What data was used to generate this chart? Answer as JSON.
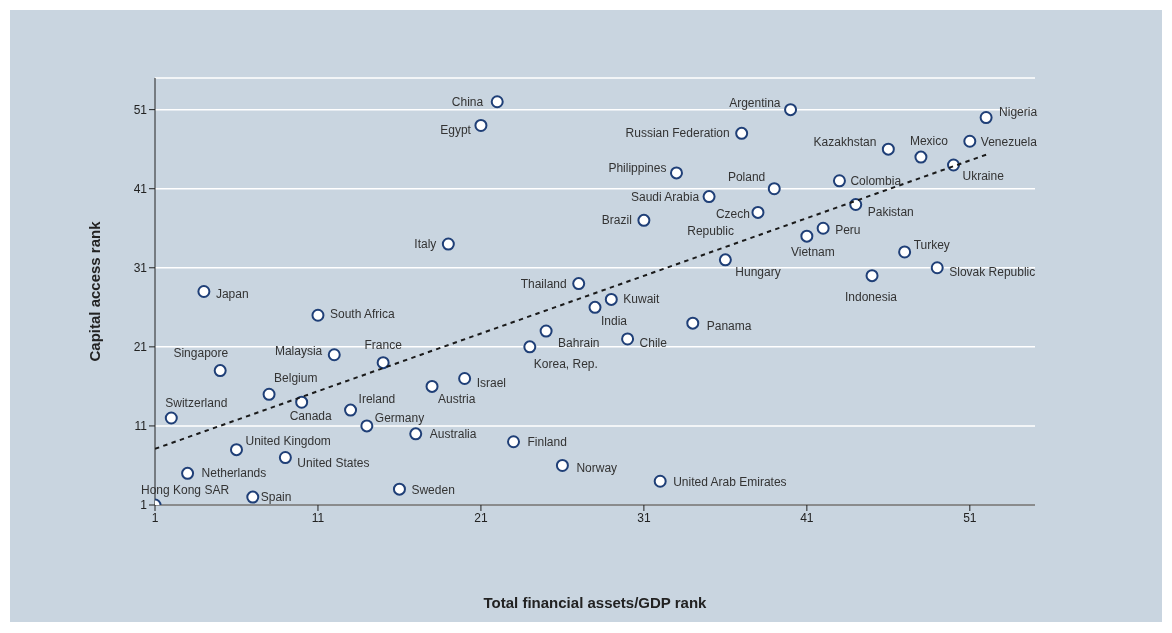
{
  "chart_data": {
    "type": "scatter",
    "xlabel": "Total financial assets/GDP rank",
    "ylabel": "Capital access rank",
    "xlim": [
      1,
      55
    ],
    "ylim": [
      1,
      55
    ],
    "xticks": [
      1,
      11,
      21,
      31,
      41,
      51
    ],
    "yticks": [
      1,
      11,
      21,
      31,
      41,
      51
    ],
    "grid": "y",
    "legend": false,
    "series": [
      {
        "type": "scatter",
        "marker": "circle",
        "color": "#1f3f77",
        "x": [
          1,
          2,
          3,
          4,
          5,
          6,
          7,
          8,
          9,
          10,
          11,
          12,
          13,
          14,
          15,
          16,
          17,
          18,
          19,
          20,
          21,
          22,
          23,
          24,
          25,
          26,
          27,
          28,
          29,
          30,
          31,
          32,
          33,
          34,
          35,
          36,
          37,
          38,
          39,
          40,
          41,
          42,
          43,
          44,
          45,
          46,
          47,
          48,
          49,
          50,
          51,
          52
        ],
        "values": [
          1,
          12,
          5,
          28,
          18,
          8,
          2,
          15,
          7,
          14,
          25,
          20,
          13,
          11,
          19,
          3,
          10,
          16,
          34,
          17,
          49,
          52,
          9,
          21,
          23,
          6,
          29,
          26,
          27,
          22,
          37,
          4,
          43,
          24,
          40,
          32,
          48,
          38,
          41,
          51,
          35,
          36,
          42,
          39,
          30,
          46,
          33,
          45,
          31,
          44,
          47,
          50
        ]
      },
      {
        "type": "line",
        "line_style": "dashed",
        "marker": "none",
        "color": "#1a1a1a",
        "x": [
          1,
          52
        ],
        "values": [
          8.1,
          45.3
        ]
      }
    ],
    "annotations": [
      {
        "text": "Hong Kong SAR",
        "x": 1,
        "y": 1
      },
      {
        "text": "Switzerland",
        "x": 2,
        "y": 12
      },
      {
        "text": "Netherlands",
        "x": 3,
        "y": 5
      },
      {
        "text": "Japan",
        "x": 4,
        "y": 28
      },
      {
        "text": "Singapore",
        "x": 5,
        "y": 18
      },
      {
        "text": "United Kingdom",
        "x": 6,
        "y": 8
      },
      {
        "text": "Spain",
        "x": 7,
        "y": 2
      },
      {
        "text": "Belgium",
        "x": 8,
        "y": 15
      },
      {
        "text": "United States",
        "x": 9,
        "y": 7
      },
      {
        "text": "Canada",
        "x": 10,
        "y": 14
      },
      {
        "text": "South Africa",
        "x": 11,
        "y": 25
      },
      {
        "text": "Malaysia",
        "x": 12,
        "y": 20
      },
      {
        "text": "Ireland",
        "x": 13,
        "y": 13
      },
      {
        "text": "Germany",
        "x": 14,
        "y": 11
      },
      {
        "text": "France",
        "x": 15,
        "y": 19
      },
      {
        "text": "Sweden",
        "x": 16,
        "y": 3
      },
      {
        "text": "Australia",
        "x": 17,
        "y": 10
      },
      {
        "text": "Austria",
        "x": 18,
        "y": 16
      },
      {
        "text": "Italy",
        "x": 19,
        "y": 34
      },
      {
        "text": "Israel",
        "x": 20,
        "y": 17
      },
      {
        "text": "Egypt",
        "x": 21,
        "y": 49
      },
      {
        "text": "China",
        "x": 22,
        "y": 52
      },
      {
        "text": "Finland",
        "x": 23,
        "y": 9
      },
      {
        "text": "Korea, Rep.",
        "x": 24,
        "y": 21
      },
      {
        "text": "Bahrain",
        "x": 25,
        "y": 23
      },
      {
        "text": "Norway",
        "x": 26,
        "y": 6
      },
      {
        "text": "Thailand",
        "x": 27,
        "y": 29
      },
      {
        "text": "India",
        "x": 28,
        "y": 26
      },
      {
        "text": "Kuwait",
        "x": 29,
        "y": 27
      },
      {
        "text": "Chile",
        "x": 30,
        "y": 22
      },
      {
        "text": "Brazil",
        "x": 31,
        "y": 37
      },
      {
        "text": "United Arab Emirates",
        "x": 32,
        "y": 4
      },
      {
        "text": "Philippines",
        "x": 33,
        "y": 43
      },
      {
        "text": "Panama",
        "x": 34,
        "y": 24
      },
      {
        "text": "Saudi Arabia",
        "x": 35,
        "y": 40
      },
      {
        "text": "Hungary",
        "x": 36,
        "y": 32
      },
      {
        "text": "Russian Federation",
        "x": 37,
        "y": 48
      },
      {
        "text": "Czech Republic",
        "x": 38,
        "y": 38
      },
      {
        "text": "Poland",
        "x": 39,
        "y": 41
      },
      {
        "text": "Argentina",
        "x": 40,
        "y": 51
      },
      {
        "text": "Vietnam",
        "x": 41,
        "y": 35
      },
      {
        "text": "Peru",
        "x": 42,
        "y": 36
      },
      {
        "text": "Colombia",
        "x": 43,
        "y": 42
      },
      {
        "text": "Pakistan",
        "x": 44,
        "y": 39
      },
      {
        "text": "Indonesia",
        "x": 45,
        "y": 30
      },
      {
        "text": "Kazakhstan",
        "x": 46,
        "y": 46
      },
      {
        "text": "Turkey",
        "x": 47,
        "y": 33
      },
      {
        "text": "Mexico",
        "x": 48,
        "y": 45
      },
      {
        "text": "Slovak Republic",
        "x": 49,
        "y": 31
      },
      {
        "text": "Ukraine",
        "x": 50,
        "y": 44
      },
      {
        "text": "Venezuela",
        "x": 51,
        "y": 47
      },
      {
        "text": "Nigeria",
        "x": 52,
        "y": 50
      }
    ]
  }
}
